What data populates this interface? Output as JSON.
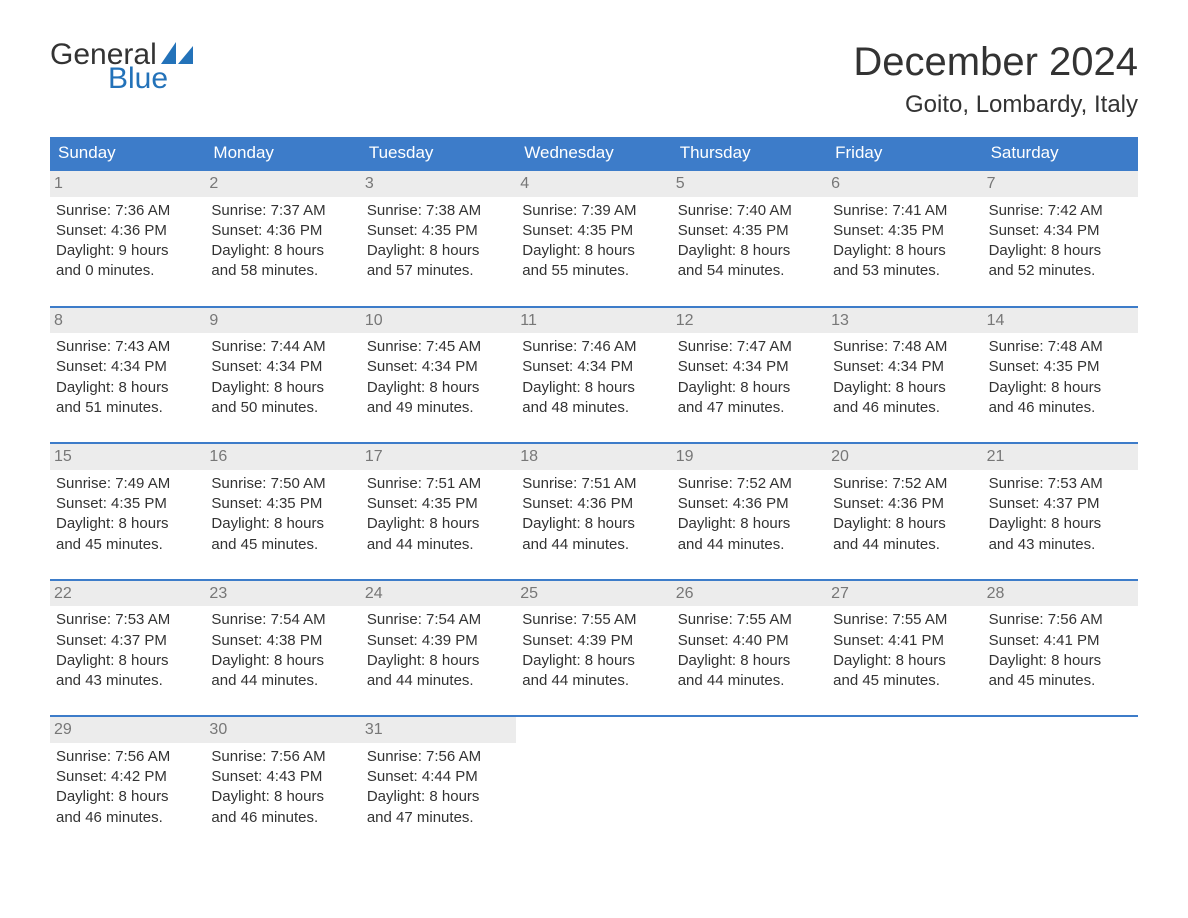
{
  "logo": {
    "word1": "General",
    "word2": "Blue",
    "text_color_dark": "#333333",
    "text_color_blue": "#2372b9",
    "sail_color": "#2372b9",
    "fontsize": 30
  },
  "title": {
    "month": "December 2024",
    "month_fontsize": 40,
    "location": "Goito, Lombardy, Italy",
    "location_fontsize": 24,
    "text_color": "#333333"
  },
  "colors": {
    "header_bg": "#3d7cc9",
    "header_text": "#ffffff",
    "week_border": "#3d7cc9",
    "daynum_bg": "#ececec",
    "daynum_text": "#777777",
    "body_text": "#333333",
    "page_bg": "#ffffff"
  },
  "layout": {
    "columns": 7,
    "body_fontsize": 15,
    "dow_fontsize": 17
  },
  "days_of_week": [
    "Sunday",
    "Monday",
    "Tuesday",
    "Wednesday",
    "Thursday",
    "Friday",
    "Saturday"
  ],
  "weeks": [
    [
      {
        "n": "1",
        "sunrise": "Sunrise: 7:36 AM",
        "sunset": "Sunset: 4:36 PM",
        "d1": "Daylight: 9 hours",
        "d2": "and 0 minutes."
      },
      {
        "n": "2",
        "sunrise": "Sunrise: 7:37 AM",
        "sunset": "Sunset: 4:36 PM",
        "d1": "Daylight: 8 hours",
        "d2": "and 58 minutes."
      },
      {
        "n": "3",
        "sunrise": "Sunrise: 7:38 AM",
        "sunset": "Sunset: 4:35 PM",
        "d1": "Daylight: 8 hours",
        "d2": "and 57 minutes."
      },
      {
        "n": "4",
        "sunrise": "Sunrise: 7:39 AM",
        "sunset": "Sunset: 4:35 PM",
        "d1": "Daylight: 8 hours",
        "d2": "and 55 minutes."
      },
      {
        "n": "5",
        "sunrise": "Sunrise: 7:40 AM",
        "sunset": "Sunset: 4:35 PM",
        "d1": "Daylight: 8 hours",
        "d2": "and 54 minutes."
      },
      {
        "n": "6",
        "sunrise": "Sunrise: 7:41 AM",
        "sunset": "Sunset: 4:35 PM",
        "d1": "Daylight: 8 hours",
        "d2": "and 53 minutes."
      },
      {
        "n": "7",
        "sunrise": "Sunrise: 7:42 AM",
        "sunset": "Sunset: 4:34 PM",
        "d1": "Daylight: 8 hours",
        "d2": "and 52 minutes."
      }
    ],
    [
      {
        "n": "8",
        "sunrise": "Sunrise: 7:43 AM",
        "sunset": "Sunset: 4:34 PM",
        "d1": "Daylight: 8 hours",
        "d2": "and 51 minutes."
      },
      {
        "n": "9",
        "sunrise": "Sunrise: 7:44 AM",
        "sunset": "Sunset: 4:34 PM",
        "d1": "Daylight: 8 hours",
        "d2": "and 50 minutes."
      },
      {
        "n": "10",
        "sunrise": "Sunrise: 7:45 AM",
        "sunset": "Sunset: 4:34 PM",
        "d1": "Daylight: 8 hours",
        "d2": "and 49 minutes."
      },
      {
        "n": "11",
        "sunrise": "Sunrise: 7:46 AM",
        "sunset": "Sunset: 4:34 PM",
        "d1": "Daylight: 8 hours",
        "d2": "and 48 minutes."
      },
      {
        "n": "12",
        "sunrise": "Sunrise: 7:47 AM",
        "sunset": "Sunset: 4:34 PM",
        "d1": "Daylight: 8 hours",
        "d2": "and 47 minutes."
      },
      {
        "n": "13",
        "sunrise": "Sunrise: 7:48 AM",
        "sunset": "Sunset: 4:34 PM",
        "d1": "Daylight: 8 hours",
        "d2": "and 46 minutes."
      },
      {
        "n": "14",
        "sunrise": "Sunrise: 7:48 AM",
        "sunset": "Sunset: 4:35 PM",
        "d1": "Daylight: 8 hours",
        "d2": "and 46 minutes."
      }
    ],
    [
      {
        "n": "15",
        "sunrise": "Sunrise: 7:49 AM",
        "sunset": "Sunset: 4:35 PM",
        "d1": "Daylight: 8 hours",
        "d2": "and 45 minutes."
      },
      {
        "n": "16",
        "sunrise": "Sunrise: 7:50 AM",
        "sunset": "Sunset: 4:35 PM",
        "d1": "Daylight: 8 hours",
        "d2": "and 45 minutes."
      },
      {
        "n": "17",
        "sunrise": "Sunrise: 7:51 AM",
        "sunset": "Sunset: 4:35 PM",
        "d1": "Daylight: 8 hours",
        "d2": "and 44 minutes."
      },
      {
        "n": "18",
        "sunrise": "Sunrise: 7:51 AM",
        "sunset": "Sunset: 4:36 PM",
        "d1": "Daylight: 8 hours",
        "d2": "and 44 minutes."
      },
      {
        "n": "19",
        "sunrise": "Sunrise: 7:52 AM",
        "sunset": "Sunset: 4:36 PM",
        "d1": "Daylight: 8 hours",
        "d2": "and 44 minutes."
      },
      {
        "n": "20",
        "sunrise": "Sunrise: 7:52 AM",
        "sunset": "Sunset: 4:36 PM",
        "d1": "Daylight: 8 hours",
        "d2": "and 44 minutes."
      },
      {
        "n": "21",
        "sunrise": "Sunrise: 7:53 AM",
        "sunset": "Sunset: 4:37 PM",
        "d1": "Daylight: 8 hours",
        "d2": "and 43 minutes."
      }
    ],
    [
      {
        "n": "22",
        "sunrise": "Sunrise: 7:53 AM",
        "sunset": "Sunset: 4:37 PM",
        "d1": "Daylight: 8 hours",
        "d2": "and 43 minutes."
      },
      {
        "n": "23",
        "sunrise": "Sunrise: 7:54 AM",
        "sunset": "Sunset: 4:38 PM",
        "d1": "Daylight: 8 hours",
        "d2": "and 44 minutes."
      },
      {
        "n": "24",
        "sunrise": "Sunrise: 7:54 AM",
        "sunset": "Sunset: 4:39 PM",
        "d1": "Daylight: 8 hours",
        "d2": "and 44 minutes."
      },
      {
        "n": "25",
        "sunrise": "Sunrise: 7:55 AM",
        "sunset": "Sunset: 4:39 PM",
        "d1": "Daylight: 8 hours",
        "d2": "and 44 minutes."
      },
      {
        "n": "26",
        "sunrise": "Sunrise: 7:55 AM",
        "sunset": "Sunset: 4:40 PM",
        "d1": "Daylight: 8 hours",
        "d2": "and 44 minutes."
      },
      {
        "n": "27",
        "sunrise": "Sunrise: 7:55 AM",
        "sunset": "Sunset: 4:41 PM",
        "d1": "Daylight: 8 hours",
        "d2": "and 45 minutes."
      },
      {
        "n": "28",
        "sunrise": "Sunrise: 7:56 AM",
        "sunset": "Sunset: 4:41 PM",
        "d1": "Daylight: 8 hours",
        "d2": "and 45 minutes."
      }
    ],
    [
      {
        "n": "29",
        "sunrise": "Sunrise: 7:56 AM",
        "sunset": "Sunset: 4:42 PM",
        "d1": "Daylight: 8 hours",
        "d2": "and 46 minutes."
      },
      {
        "n": "30",
        "sunrise": "Sunrise: 7:56 AM",
        "sunset": "Sunset: 4:43 PM",
        "d1": "Daylight: 8 hours",
        "d2": "and 46 minutes."
      },
      {
        "n": "31",
        "sunrise": "Sunrise: 7:56 AM",
        "sunset": "Sunset: 4:44 PM",
        "d1": "Daylight: 8 hours",
        "d2": "and 47 minutes."
      },
      null,
      null,
      null,
      null
    ]
  ]
}
